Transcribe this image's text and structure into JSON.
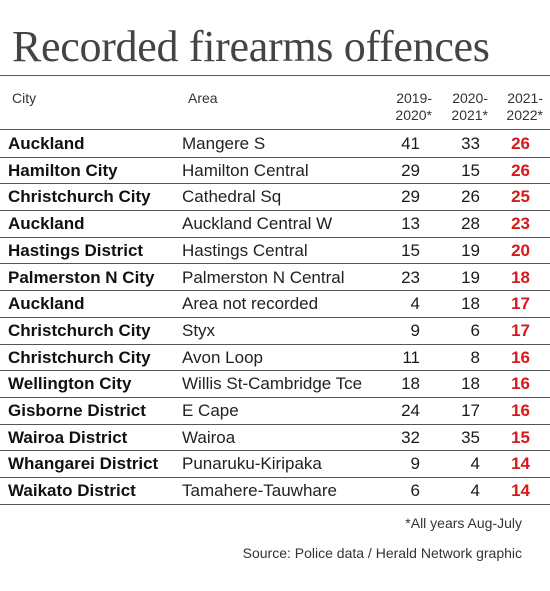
{
  "title": "Recorded firearms offences",
  "headers": {
    "city": "City",
    "area": "Area",
    "y1_a": "2019-",
    "y1_b": "2020*",
    "y2_a": "2020-",
    "y2_b": "2021*",
    "y3_a": "2021-",
    "y3_b": "2022*"
  },
  "colors": {
    "highlight": "#d7191c",
    "text": "#111111",
    "rule": "#555555"
  },
  "footnote": "*All years Aug-July",
  "source": "Source: Police data / Herald Network graphic",
  "chart_data": {
    "type": "table",
    "columns": [
      "City",
      "Area",
      "2019-2020*",
      "2020-2021*",
      "2021-2022*"
    ],
    "rows": [
      {
        "city": "Auckland",
        "area": "Mangere S",
        "v1": 41,
        "v2": 33,
        "v3": 26
      },
      {
        "city": "Hamilton City",
        "area": "Hamilton Central",
        "v1": 29,
        "v2": 15,
        "v3": 26
      },
      {
        "city": "Christchurch City",
        "area": "Cathedral Sq",
        "v1": 29,
        "v2": 26,
        "v3": 25
      },
      {
        "city": "Auckland",
        "area": "Auckland Central W",
        "v1": 13,
        "v2": 28,
        "v3": 23
      },
      {
        "city": "Hastings District",
        "area": "Hastings Central",
        "v1": 15,
        "v2": 19,
        "v3": 20
      },
      {
        "city": "Palmerston N City",
        "area": "Palmerston N Central",
        "v1": 23,
        "v2": 19,
        "v3": 18
      },
      {
        "city": "Auckland",
        "area": "Area not recorded",
        "v1": 4,
        "v2": 18,
        "v3": 17
      },
      {
        "city": "Christchurch City",
        "area": "Styx",
        "v1": 9,
        "v2": 6,
        "v3": 17
      },
      {
        "city": "Christchurch City",
        "area": "Avon Loop",
        "v1": 11,
        "v2": 8,
        "v3": 16
      },
      {
        "city": "Wellington City",
        "area": "Willis St-Cambridge Tce",
        "v1": 18,
        "v2": 18,
        "v3": 16
      },
      {
        "city": "Gisborne District",
        "area": "E Cape",
        "v1": 24,
        "v2": 17,
        "v3": 16
      },
      {
        "city": "Wairoa District",
        "area": "Wairoa",
        "v1": 32,
        "v2": 35,
        "v3": 15
      },
      {
        "city": "Whangarei District",
        "area": "Punaruku-Kiripaka",
        "v1": 9,
        "v2": 4,
        "v3": 14
      },
      {
        "city": "Waikato District",
        "area": "Tamahere-Tauwhare",
        "v1": 6,
        "v2": 4,
        "v3": 14
      }
    ]
  }
}
